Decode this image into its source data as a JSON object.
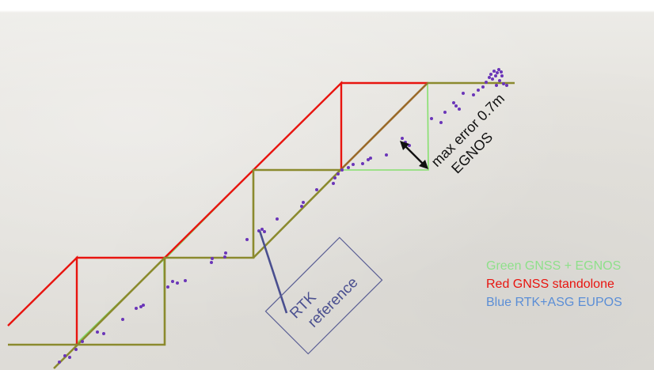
{
  "annotations": {
    "max_error_line1": "max error 0.7m",
    "max_error_line2": "EGNOS",
    "rtk_line1": "RTK",
    "rtk_line2": "reference"
  },
  "legend": [
    {
      "text": "Green GNSS + EGNOS",
      "color": "#8ee08a"
    },
    {
      "text": "Red GNSS standolone",
      "color": "#e8140f"
    },
    {
      "text": "Blue RTK+ASG EUPOS",
      "color": "#5b8ed6"
    }
  ],
  "colors": {
    "red_track": "#e8140f",
    "green_track": "#86e06e",
    "olive_track": "#8b8a2e",
    "brown_track": "#9a6a2a",
    "points": "#6a35b8",
    "rtk_pointer": "#4a4f8f",
    "arrow": "#111111"
  }
}
